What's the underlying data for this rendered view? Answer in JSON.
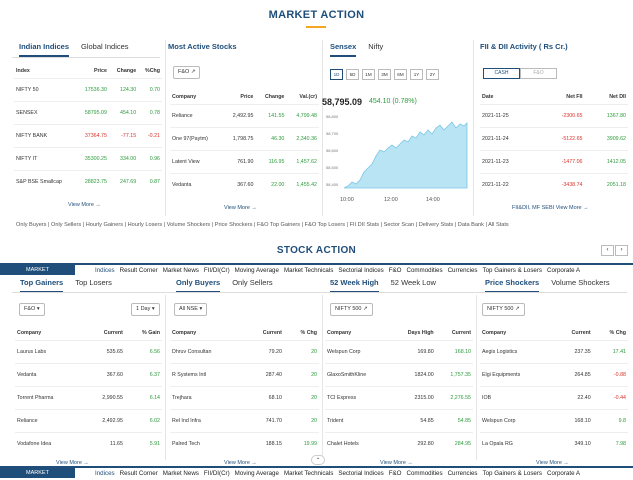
{
  "market_action": {
    "title": "MARKET ACTION",
    "indices": {
      "tabs": [
        "Indian Indices",
        "Global Indices"
      ],
      "headers": [
        "Index",
        "Price",
        "Change",
        "%Chg"
      ],
      "rows": [
        {
          "name": "NIFTY 50",
          "price": "17536.30",
          "change": "124.30",
          "pct": "0.70",
          "dir": "pos"
        },
        {
          "name": "SENSEX",
          "price": "58795.09",
          "change": "454.10",
          "pct": "0.78",
          "dir": "pos"
        },
        {
          "name": "NIFTY BANK",
          "price": "37364.75",
          "change": "-77.15",
          "pct": "-0.21",
          "dir": "neg"
        },
        {
          "name": "NIFTY IT",
          "price": "35300.25",
          "change": "334.00",
          "pct": "0.96",
          "dir": "pos"
        },
        {
          "name": "S&P BSE Smallcap",
          "price": "28823.75",
          "change": "247.69",
          "pct": "0.87",
          "dir": "pos"
        }
      ],
      "view_more": "View More"
    },
    "most_active": {
      "title": "Most Active Stocks",
      "dropdown": "F&O",
      "headers": [
        "Company",
        "Price",
        "Change",
        "Val.(cr)"
      ],
      "rows": [
        {
          "name": "Reliance",
          "price": "2,492.95",
          "change": "141.55",
          "val": "4,799.48"
        },
        {
          "name": "One 97(Paytm)",
          "price": "1,798.75",
          "change": "46.30",
          "val": "2,340.36"
        },
        {
          "name": "Latent View",
          "price": "761.90",
          "change": "116.95",
          "val": "1,457.62"
        },
        {
          "name": "Vedanta",
          "price": "367.60",
          "change": "22.00",
          "val": "1,455.42"
        }
      ],
      "view_more": "View More"
    },
    "sensex_chart": {
      "tabs": [
        "Sensex",
        "Nifty"
      ],
      "periods": [
        "1D",
        "5D",
        "1M",
        "3M",
        "6M",
        "1Y",
        "2Y"
      ],
      "value": "58,795.09",
      "change": "454.10 (0.78%)",
      "accent": "#2e9b3d",
      "fill": "#b9e4f3",
      "line": "#7bc6e6"
    },
    "fii_dii": {
      "title": "FII & DII Activity ( Rs Cr.)",
      "toggle": [
        "CASH",
        "F&O"
      ],
      "headers": [
        "Date",
        "Net FII",
        "Net DII"
      ],
      "rows": [
        {
          "date": "2021-11-25",
          "fii": "-2300.65",
          "dii": "1367.80"
        },
        {
          "date": "2021-11-24",
          "fii": "-5122.65",
          "dii": "3909.62"
        },
        {
          "date": "2021-11-23",
          "fii": "-1477.06",
          "dii": "1412.05"
        },
        {
          "date": "2021-11-22",
          "fii": "-3438.74",
          "dii": "2051.18"
        }
      ],
      "view_more": "FII&DII, MF SEBI View More"
    },
    "quick_links": [
      "Only Buyers",
      "Only Sellers",
      "Hourly Gainers",
      "Hourly Losers",
      "Volume Shockers",
      "Price Shockers",
      "F&O Top Gainers",
      "F&O Top Losers",
      "FII DII Stats",
      "Sector Scan",
      "Delivery Stats",
      "Data Bank",
      "All Stats"
    ]
  },
  "stock_action": {
    "title": "STOCK ACTION",
    "gainers": {
      "tabs": [
        "Top Gainers",
        "Top Losers"
      ],
      "dropdown": "F&O",
      "period": "1 Day",
      "headers": [
        "Company",
        "Current",
        "% Gain"
      ],
      "rows": [
        {
          "name": "Laurus Labs",
          "current": "535.65",
          "pct": "6.56"
        },
        {
          "name": "Vedanta",
          "current": "367.60",
          "pct": "6.37"
        },
        {
          "name": "Torrent Pharma",
          "current": "2,990.55",
          "pct": "6.14"
        },
        {
          "name": "Reliance",
          "current": "2,492.95",
          "pct": "6.02"
        },
        {
          "name": "Vodafone Idea",
          "current": "11.65",
          "pct": "5.91"
        }
      ]
    },
    "buyers": {
      "tabs": [
        "Only Buyers",
        "Only Sellers"
      ],
      "dropdown": "All NSE",
      "headers": [
        "Company",
        "Current",
        "% Chg"
      ],
      "rows": [
        {
          "name": "Dhruv Consultan",
          "current": "79.20",
          "pct": "20"
        },
        {
          "name": "R Systems Intl",
          "current": "287.40",
          "pct": "20"
        },
        {
          "name": "Trejhara",
          "current": "68.10",
          "pct": "20"
        },
        {
          "name": "Rel Ind Infra",
          "current": "741.70",
          "pct": "20"
        },
        {
          "name": "Palred Tech",
          "current": "188.15",
          "pct": "19.99"
        }
      ]
    },
    "week_high": {
      "tabs": [
        "52 Week High",
        "52 Week Low"
      ],
      "dropdown": "NIFTY 500",
      "headers": [
        "Company",
        "Days High",
        "Current"
      ],
      "rows": [
        {
          "name": "Welspun Corp",
          "high": "169.80",
          "current": "168.10"
        },
        {
          "name": "GlaxoSmithKline",
          "high": "1824.00",
          "current": "1,757.35"
        },
        {
          "name": "TCI Express",
          "high": "2315.00",
          "current": "2,276.55"
        },
        {
          "name": "Trident",
          "high": "54.85",
          "current": "54.85"
        },
        {
          "name": "Chalet Hotels",
          "high": "292.80",
          "current": "284.95"
        }
      ]
    },
    "price_shockers": {
      "tabs": [
        "Price Shockers",
        "Volume Shockers"
      ],
      "dropdown": "NIFTY 500",
      "headers": [
        "Company",
        "Current",
        "% Chg"
      ],
      "rows": [
        {
          "name": "Aegis Logistics",
          "current": "237.35",
          "pct": "17.41",
          "dir": "pos"
        },
        {
          "name": "Elgi Equipments",
          "current": "264.85",
          "pct": "-0.88",
          "dir": "neg"
        },
        {
          "name": "IOB",
          "current": "22.40",
          "pct": "-0.44",
          "dir": "neg"
        },
        {
          "name": "Welspun Corp",
          "current": "168.10",
          "pct": "9.8",
          "dir": "pos"
        },
        {
          "name": "La Opala RG",
          "current": "349.10",
          "pct": "7.98",
          "dir": "pos"
        }
      ]
    },
    "view_more": "View More"
  },
  "navbar": {
    "brand": "MARKET",
    "items": [
      "Indices",
      "Result Corner",
      "Market News",
      "FII/DI(Cr)",
      "Moving Average",
      "Market Technicals",
      "Sectorial Indices",
      "F&O",
      "Commodities",
      "Currencies",
      "Top Gainers & Losers",
      "Corporate A"
    ]
  },
  "icons": {
    "prev": "‹",
    "next": "›",
    "up": "⌃"
  }
}
